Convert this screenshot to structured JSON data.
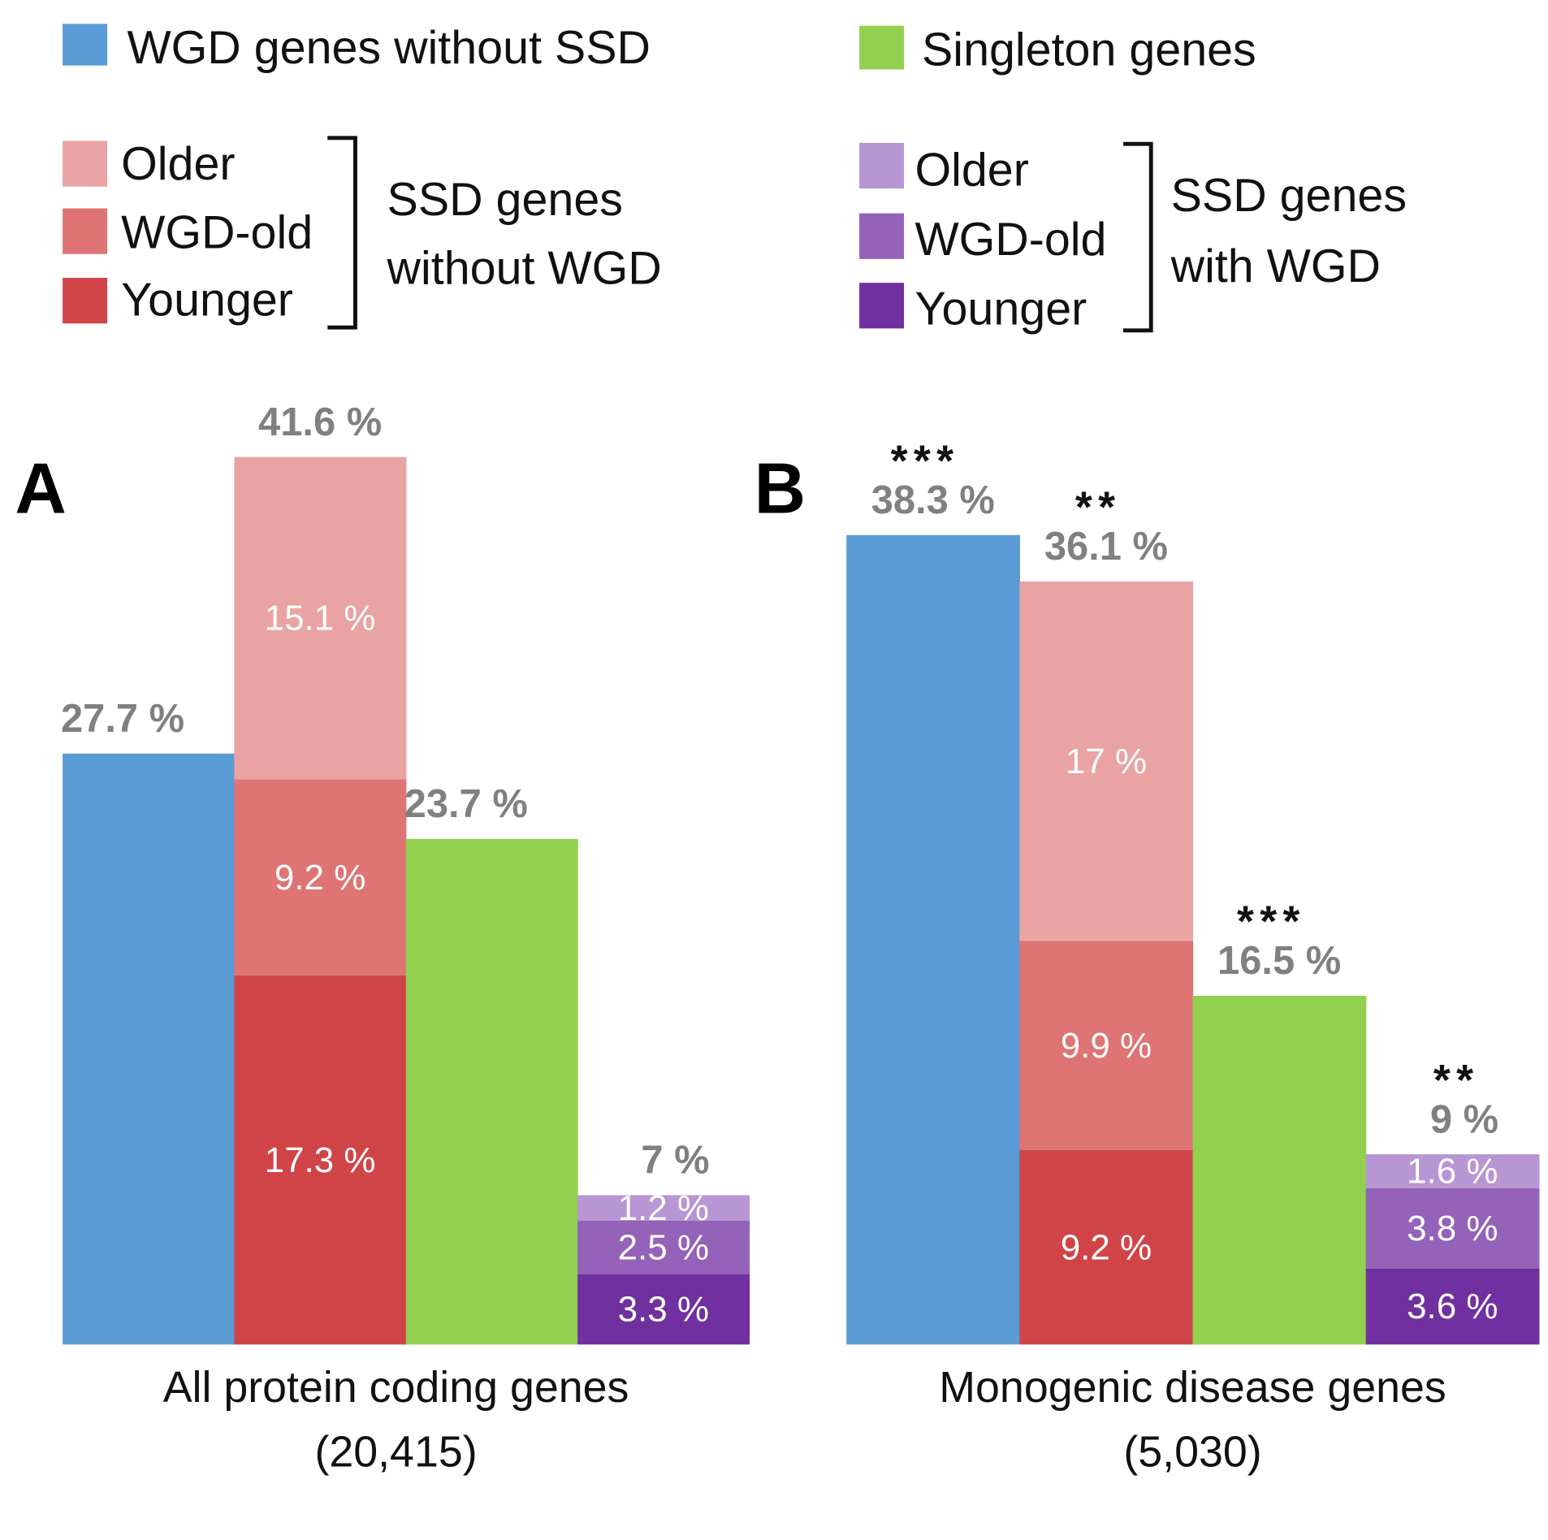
{
  "chart_data": {
    "type": "bar",
    "stacked": true,
    "legend": {
      "placement": "top",
      "items": [
        {
          "key": "wgd",
          "label": "WGD genes without SSD",
          "color": "#5b9bd5"
        },
        {
          "key": "single",
          "label": "Singleton genes",
          "color": "#92d050"
        },
        {
          "key": "ssdNoWgd",
          "group_label_1": "SSD genes",
          "group_label_2": "without WGD",
          "sub": [
            {
              "label": "Older",
              "color": "#e9a3a3"
            },
            {
              "label": "WGD-old",
              "color": "#de7474"
            },
            {
              "label": "Younger",
              "color": "#d04448"
            }
          ]
        },
        {
          "key": "ssdWgd",
          "group_label_1": "SSD genes",
          "group_label_2": "with WGD",
          "sub": [
            {
              "label": "Older",
              "color": "#b895d3"
            },
            {
              "label": "WGD-old",
              "color": "#9462b8"
            },
            {
              "label": "Younger",
              "color": "#7030a0"
            }
          ]
        }
      ]
    },
    "panels": [
      {
        "letter": "A",
        "xlabel_1": "All protein coding genes",
        "xlabel_2": "(20,415)",
        "ylim": [
          0,
          45
        ],
        "bars": [
          {
            "category": "WGD genes without SSD",
            "total": 27.7,
            "total_label": "27.7 %",
            "stars": "",
            "segments": [
              {
                "value": 27.7,
                "label": "",
                "color": "#5b9bd5"
              }
            ]
          },
          {
            "category": "SSD genes without WGD",
            "total": 41.6,
            "total_label": "41.6 %",
            "stars": "",
            "segments": [
              {
                "value": 17.3,
                "label": "17.3 %",
                "color": "#d04448"
              },
              {
                "value": 9.2,
                "label": "9.2 %",
                "color": "#de7474"
              },
              {
                "value": 15.1,
                "label": "15.1 %",
                "color": "#e9a3a3"
              }
            ]
          },
          {
            "category": "Singleton genes",
            "total": 23.7,
            "total_label": "23.7 %",
            "stars": "",
            "segments": [
              {
                "value": 23.7,
                "label": "",
                "color": "#92d050"
              }
            ]
          },
          {
            "category": "SSD genes with WGD",
            "total": 7,
            "total_label": "7 %",
            "stars": "",
            "segments": [
              {
                "value": 3.3,
                "label": "3.3 %",
                "color": "#7030a0"
              },
              {
                "value": 2.5,
                "label": "2.5 %",
                "color": "#9462b8"
              },
              {
                "value": 1.2,
                "label": "1.2 %",
                "color": "#b895d3"
              }
            ]
          }
        ]
      },
      {
        "letter": "B",
        "xlabel_1": "Monogenic disease genes",
        "xlabel_2": "(5,030)",
        "ylim": [
          0,
          45
        ],
        "bars": [
          {
            "category": "WGD genes without SSD",
            "total": 38.3,
            "total_label": "38.3 %",
            "stars": "***",
            "segments": [
              {
                "value": 38.3,
                "label": "",
                "color": "#5b9bd5"
              }
            ]
          },
          {
            "category": "SSD genes without WGD",
            "total": 36.1,
            "total_label": "36.1 %",
            "stars": "**",
            "segments": [
              {
                "value": 9.2,
                "label": "9.2 %",
                "color": "#d04448"
              },
              {
                "value": 9.9,
                "label": "9.9 %",
                "color": "#de7474"
              },
              {
                "value": 17,
                "label": "17 %",
                "color": "#e9a3a3"
              }
            ]
          },
          {
            "category": "Singleton genes",
            "total": 16.5,
            "total_label": "16.5 %",
            "stars": "***",
            "segments": [
              {
                "value": 16.5,
                "label": "",
                "color": "#92d050"
              }
            ]
          },
          {
            "category": "SSD genes with WGD",
            "total": 9,
            "total_label": "9 %",
            "stars": "**",
            "segments": [
              {
                "value": 3.6,
                "label": "3.6 %",
                "color": "#7030a0"
              },
              {
                "value": 3.8,
                "label": "3.8  %",
                "color": "#9462b8"
              },
              {
                "value": 1.6,
                "label": "1.6 %",
                "color": "#b895d3"
              }
            ]
          }
        ]
      }
    ]
  }
}
